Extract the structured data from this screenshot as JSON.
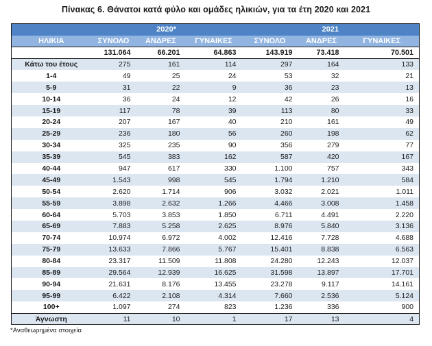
{
  "title": "Πίνακας 6. Θάνατοι κατά φύλο και ομάδες ηλικιών, για τα έτη 2020 και 2021",
  "footnote": "*Αναθεωρημένα στοιχεία",
  "colors": {
    "year_row_bg": "#4E84C6",
    "header_row_bg": "#92B4E0",
    "stripe_bg": "#DCE6F1",
    "header_text": "#FFFFFF"
  },
  "table": {
    "year_headers": {
      "y2020": "2020*",
      "y2021": "2021"
    },
    "column_headers": {
      "age": "ΗΛΙΚΙΑ",
      "total_2020": "ΣΥΝΟΛΟ",
      "men_2020": "ΑΝΔΡΕΣ",
      "women_2020": "ΓΥΝΑΙΚΕΣ",
      "total_2021": "ΣΥΝΟΛΟ",
      "men_2021": "ΑΝΔΡΕΣ",
      "women_2021": "ΓΥΝΑΙΚΕΣ"
    },
    "totals": {
      "age": "",
      "values": [
        "131.064",
        "66.201",
        "64.863",
        "143.919",
        "73.418",
        "70.501"
      ]
    },
    "rows": [
      {
        "age": "Κάτω του έτους",
        "values": [
          "275",
          "161",
          "114",
          "297",
          "164",
          "133"
        ]
      },
      {
        "age": "1-4",
        "values": [
          "49",
          "25",
          "24",
          "53",
          "32",
          "21"
        ]
      },
      {
        "age": "5-9",
        "values": [
          "31",
          "22",
          "9",
          "36",
          "23",
          "13"
        ]
      },
      {
        "age": "10-14",
        "values": [
          "36",
          "24",
          "12",
          "42",
          "26",
          "16"
        ]
      },
      {
        "age": "15-19",
        "values": [
          "117",
          "78",
          "39",
          "113",
          "80",
          "33"
        ]
      },
      {
        "age": "20-24",
        "values": [
          "207",
          "167",
          "40",
          "210",
          "161",
          "49"
        ]
      },
      {
        "age": "25-29",
        "values": [
          "236",
          "180",
          "56",
          "260",
          "198",
          "62"
        ]
      },
      {
        "age": "30-34",
        "values": [
          "325",
          "235",
          "90",
          "356",
          "279",
          "77"
        ]
      },
      {
        "age": "35-39",
        "values": [
          "545",
          "383",
          "162",
          "587",
          "420",
          "167"
        ]
      },
      {
        "age": "40-44",
        "values": [
          "947",
          "617",
          "330",
          "1.100",
          "757",
          "343"
        ]
      },
      {
        "age": "45-49",
        "values": [
          "1.543",
          "998",
          "545",
          "1.794",
          "1.210",
          "584"
        ]
      },
      {
        "age": "50-54",
        "values": [
          "2.620",
          "1.714",
          "906",
          "3.032",
          "2.021",
          "1.011"
        ]
      },
      {
        "age": "55-59",
        "values": [
          "3.898",
          "2.632",
          "1.266",
          "4.466",
          "3.008",
          "1.458"
        ]
      },
      {
        "age": "60-64",
        "values": [
          "5.703",
          "3.853",
          "1.850",
          "6.711",
          "4.491",
          "2.220"
        ]
      },
      {
        "age": "65-69",
        "values": [
          "7.883",
          "5.258",
          "2.625",
          "8.976",
          "5.840",
          "3.136"
        ]
      },
      {
        "age": "70-74",
        "values": [
          "10.974",
          "6.972",
          "4.002",
          "12.416",
          "7.728",
          "4.688"
        ]
      },
      {
        "age": "75-79",
        "values": [
          "13.633",
          "7.866",
          "5.767",
          "15.401",
          "8.838",
          "6.563"
        ]
      },
      {
        "age": "80-84",
        "values": [
          "23.317",
          "11.509",
          "11.808",
          "24.280",
          "12.243",
          "12.037"
        ]
      },
      {
        "age": "85-89",
        "values": [
          "29.564",
          "12.939",
          "16.625",
          "31.598",
          "13.897",
          "17.701"
        ]
      },
      {
        "age": "90-94",
        "values": [
          "21.631",
          "8.176",
          "13.455",
          "23.278",
          "9.117",
          "14.161"
        ]
      },
      {
        "age": "95-99",
        "values": [
          "6.422",
          "2.108",
          "4.314",
          "7.660",
          "2.536",
          "5.124"
        ]
      },
      {
        "age": "100+",
        "values": [
          "1.097",
          "274",
          "823",
          "1.236",
          "336",
          "900"
        ]
      },
      {
        "age": "Άγνωστη",
        "values": [
          "11",
          "10",
          "1",
          "17",
          "13",
          "4"
        ]
      }
    ]
  }
}
